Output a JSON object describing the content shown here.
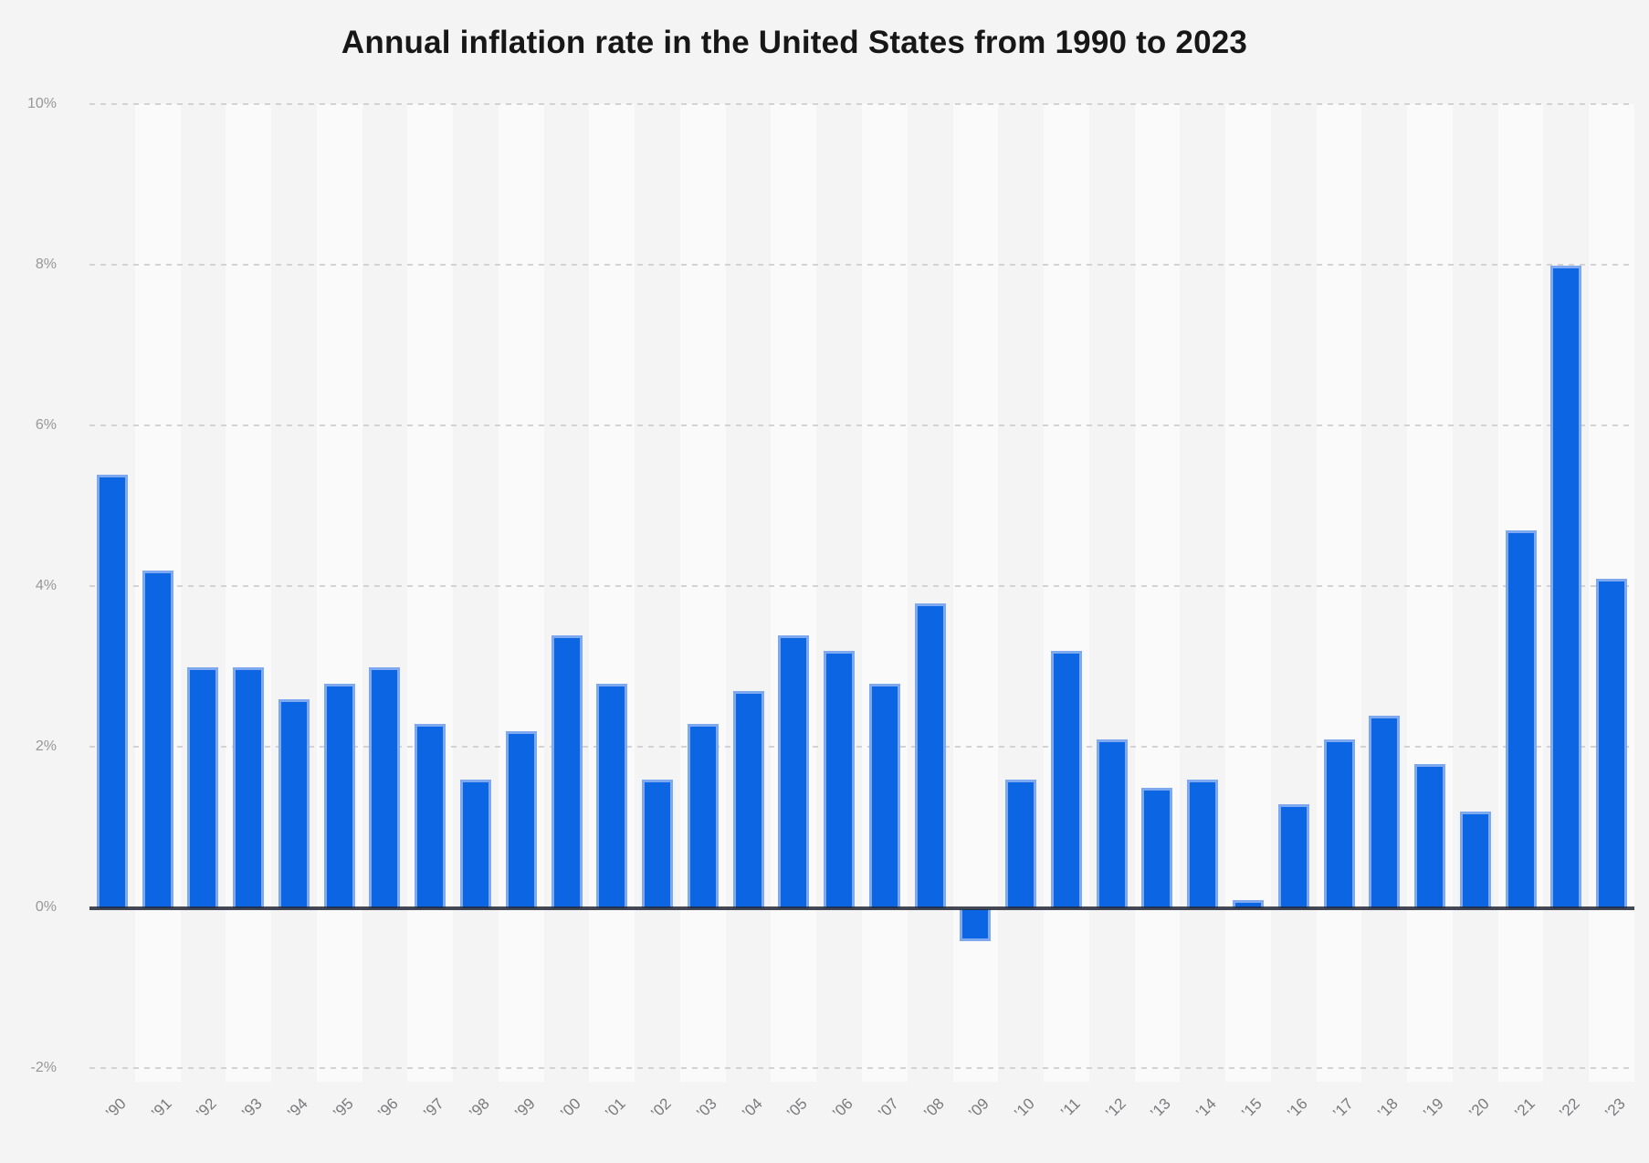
{
  "chart": {
    "title": "Annual inflation rate in the United States from 1990 to 2023"
  },
  "chart_data": {
    "type": "bar",
    "title": "Annual inflation rate in the United States from 1990 to 2023",
    "categories": [
      "’90",
      "’91",
      "’92",
      "’93",
      "’94",
      "’95",
      "’96",
      "’97",
      "’98",
      "’99",
      "’00",
      "’01",
      "’02",
      "’03",
      "’04",
      "’05",
      "’06",
      "’07",
      "’08",
      "’09",
      "’10",
      "’11",
      "’12",
      "’13",
      "’14",
      "’15",
      "’16",
      "’17",
      "’18",
      "’19",
      "’20",
      "’21",
      "’22",
      "’23"
    ],
    "years": [
      1990,
      1991,
      1992,
      1993,
      1994,
      1995,
      1996,
      1997,
      1998,
      1999,
      2000,
      2001,
      2002,
      2003,
      2004,
      2005,
      2006,
      2007,
      2008,
      2009,
      2010,
      2011,
      2012,
      2013,
      2014,
      2015,
      2016,
      2017,
      2018,
      2019,
      2020,
      2021,
      2022,
      2023
    ],
    "values": [
      5.4,
      4.2,
      3.0,
      3.0,
      2.6,
      2.8,
      3.0,
      2.3,
      1.6,
      2.2,
      3.4,
      2.8,
      1.6,
      2.3,
      2.7,
      3.4,
      3.2,
      2.8,
      3.8,
      -0.4,
      1.6,
      3.2,
      2.1,
      1.5,
      1.6,
      0.1,
      1.3,
      2.1,
      2.4,
      1.8,
      1.2,
      4.7,
      8.0,
      4.1
    ],
    "unit": "%",
    "xlabel": "",
    "ylabel": "",
    "ylim": [
      -2.4,
      10
    ],
    "yticks": [
      {
        "label": "10%",
        "value": 10
      },
      {
        "label": "8%",
        "value": 8
      },
      {
        "label": "6%",
        "value": 6
      },
      {
        "label": "4%",
        "value": 4
      },
      {
        "label": "2%",
        "value": 2
      },
      {
        "label": "0%",
        "value": 0
      },
      {
        "label": "-2%",
        "value": -2
      }
    ],
    "grid": "horizontal-dashed",
    "legend": "none",
    "colors": {
      "bar_fill": "#0c66e4",
      "bar_edge": "#7ea9f0",
      "axis_line": "#232837",
      "gridline": "#d3d3d6",
      "y_tick_label": "#97979b",
      "x_tick_label": "#7a7a7e",
      "title": "#171717",
      "background": "#f4f4f5",
      "column_stripe": "#fafafb"
    }
  }
}
